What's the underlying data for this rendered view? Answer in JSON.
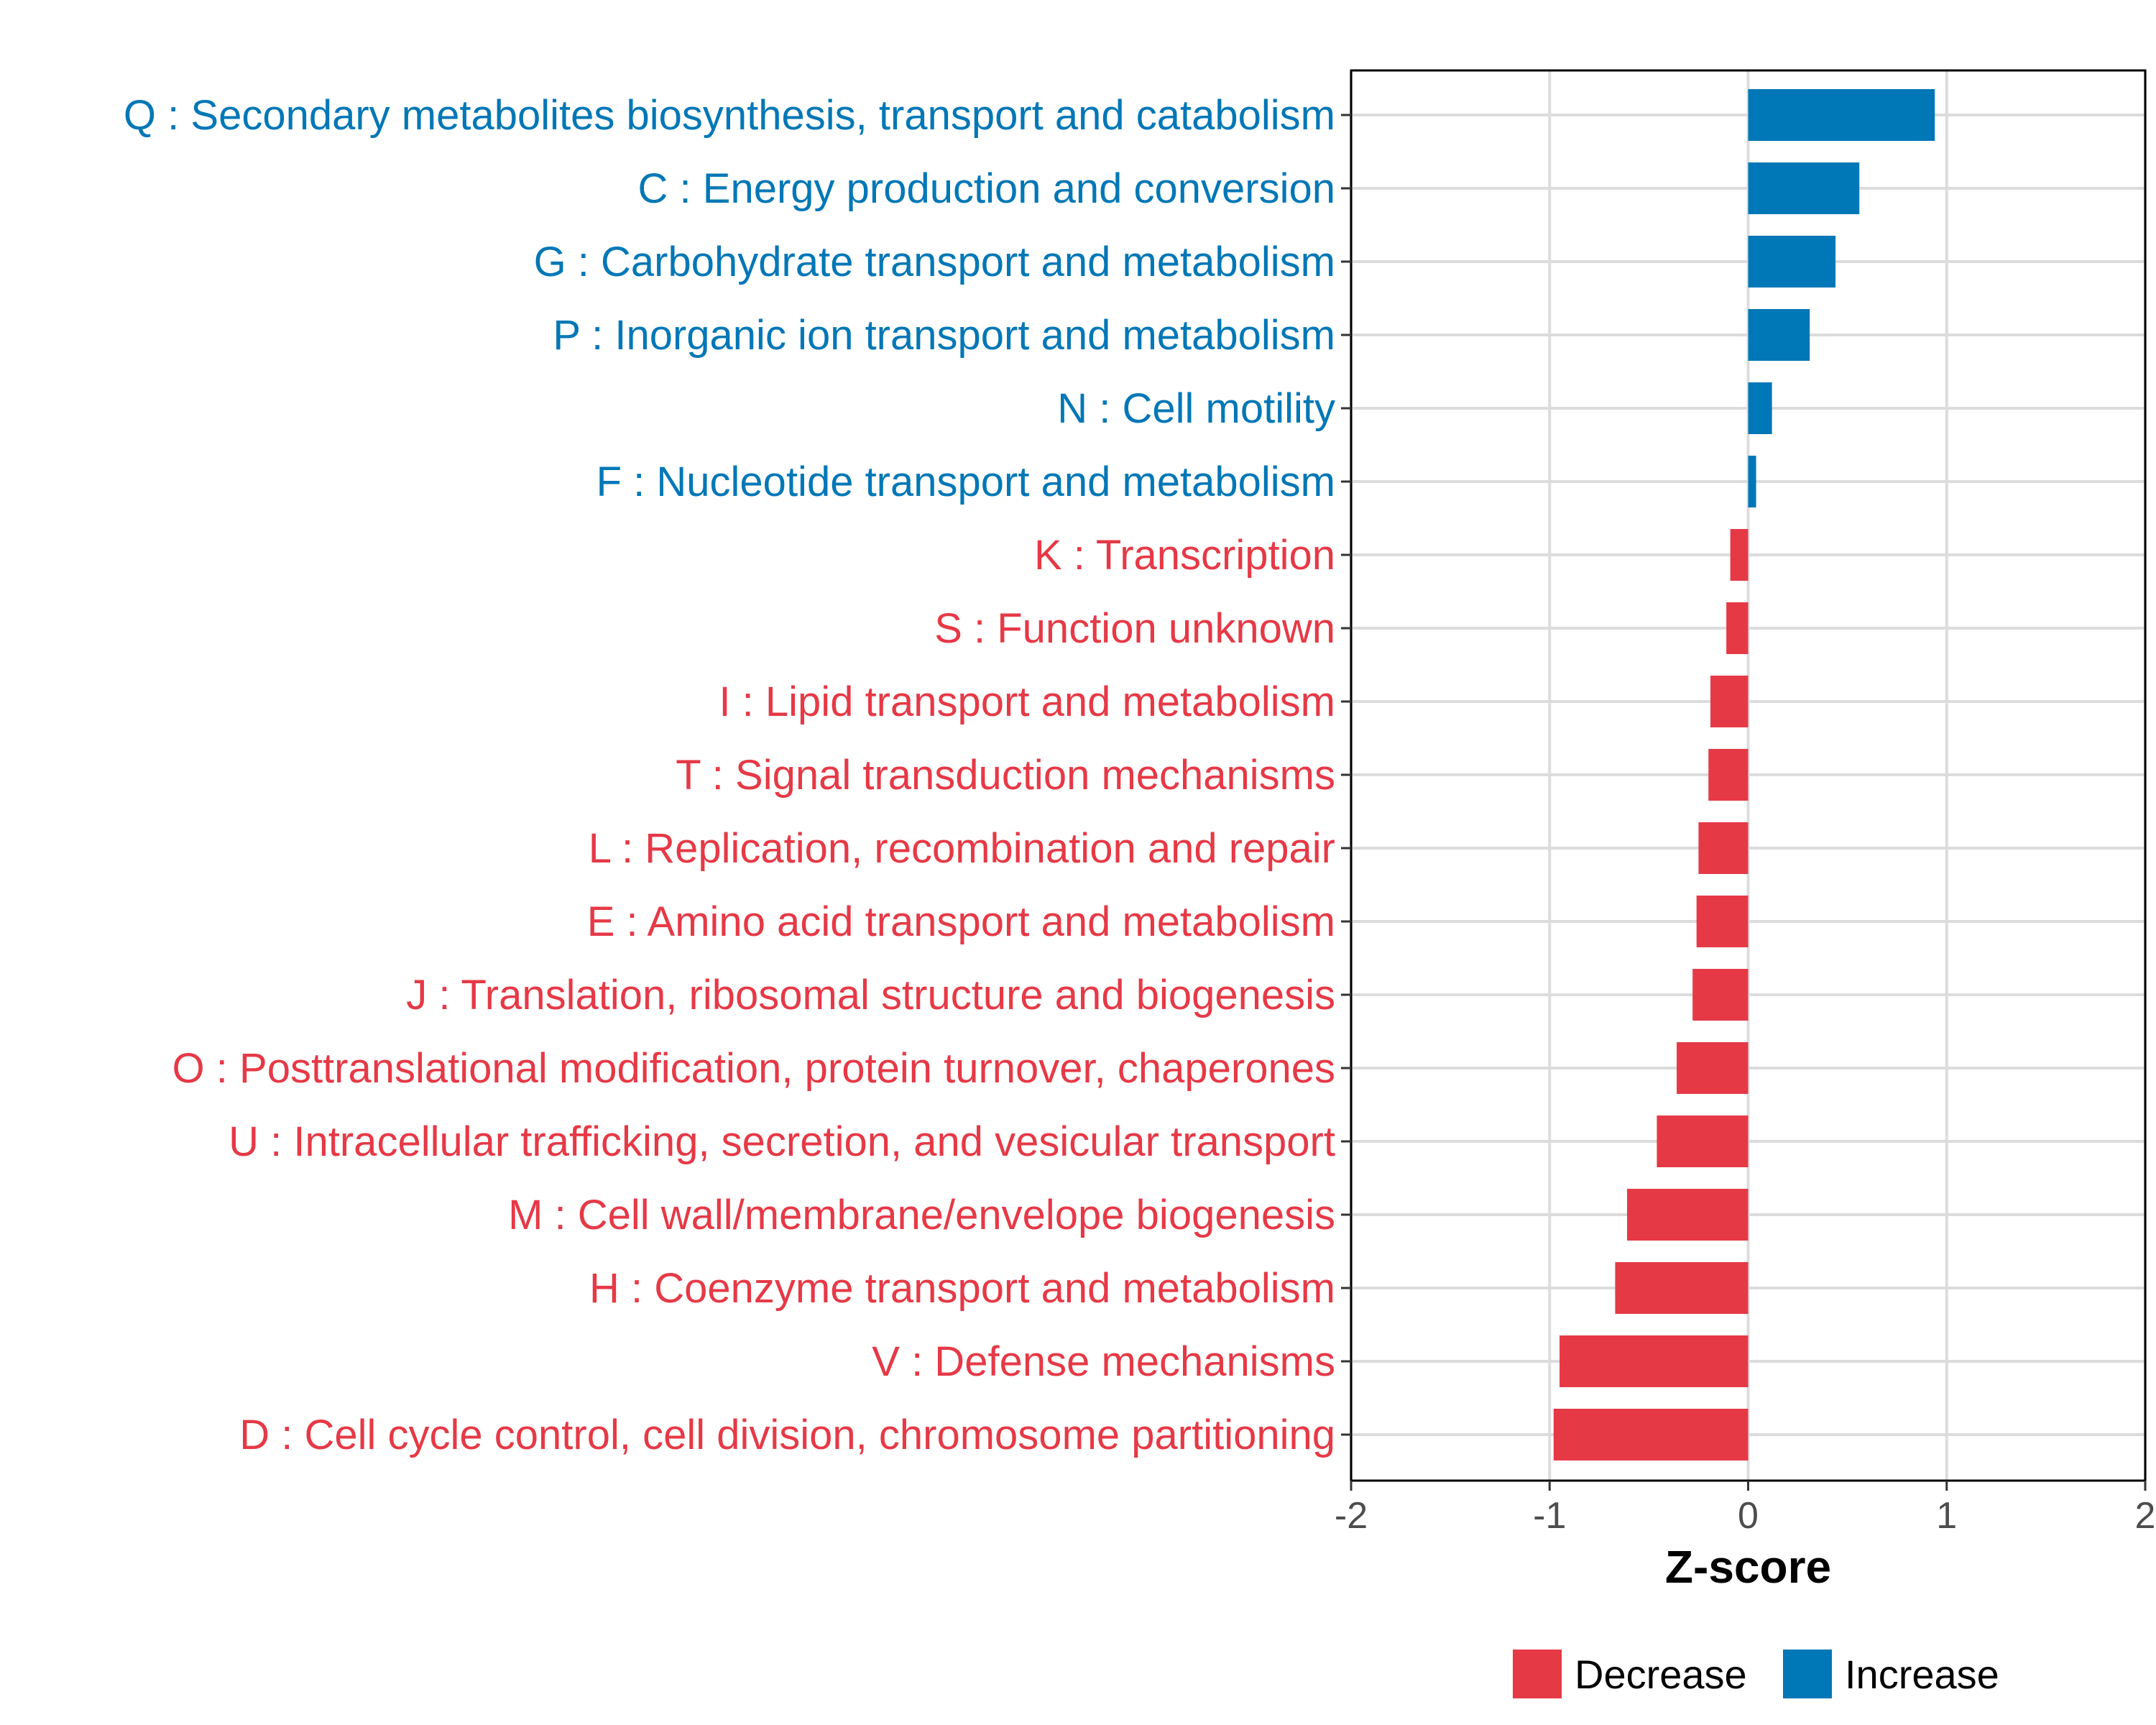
{
  "chart_data": {
    "type": "bar",
    "orientation": "horizontal",
    "title": "",
    "xlabel": "Z-score",
    "ylabel": "",
    "xlim": [
      -2.0,
      2.0
    ],
    "x_ticks": [
      -2,
      -1,
      0,
      1,
      2
    ],
    "x_tick_labels": [
      "-2",
      "-1",
      "0",
      "1",
      "2"
    ],
    "grid": true,
    "colors": {
      "Increase": "#0077b6",
      "Decrease": "#e63946"
    },
    "legend": {
      "placement": "bottom",
      "entries": [
        "Decrease",
        "Increase"
      ]
    },
    "bars": [
      {
        "label": "Q : Secondary metabolites biosynthesis, transport and catabolism",
        "value": 0.94,
        "group": "Increase"
      },
      {
        "label": "C : Energy production and conversion",
        "value": 0.56,
        "group": "Increase"
      },
      {
        "label": "G : Carbohydrate transport and metabolism",
        "value": 0.44,
        "group": "Increase"
      },
      {
        "label": "P : Inorganic ion transport and metabolism",
        "value": 0.31,
        "group": "Increase"
      },
      {
        "label": "N : Cell motility",
        "value": 0.12,
        "group": "Increase"
      },
      {
        "label": "F : Nucleotide transport and metabolism",
        "value": 0.04,
        "group": "Increase"
      },
      {
        "label": "K : Transcription",
        "value": -0.09,
        "group": "Decrease"
      },
      {
        "label": "S : Function unknown",
        "value": -0.11,
        "group": "Decrease"
      },
      {
        "label": "I : Lipid transport and metabolism",
        "value": -0.19,
        "group": "Decrease"
      },
      {
        "label": "T : Signal transduction mechanisms",
        "value": -0.2,
        "group": "Decrease"
      },
      {
        "label": "L : Replication, recombination and repair",
        "value": -0.25,
        "group": "Decrease"
      },
      {
        "label": "E : Amino acid transport and metabolism",
        "value": -0.26,
        "group": "Decrease"
      },
      {
        "label": "J : Translation, ribosomal structure and biogenesis",
        "value": -0.28,
        "group": "Decrease"
      },
      {
        "label": "O : Posttranslational modification, protein turnover, chaperones",
        "value": -0.36,
        "group": "Decrease"
      },
      {
        "label": "U : Intracellular trafficking, secretion, and vesicular transport",
        "value": -0.46,
        "group": "Decrease"
      },
      {
        "label": "M : Cell wall/membrane/envelope biogenesis",
        "value": -0.61,
        "group": "Decrease"
      },
      {
        "label": "H : Coenzyme transport and metabolism",
        "value": -0.67,
        "group": "Decrease"
      },
      {
        "label": "V : Defense mechanisms",
        "value": -0.95,
        "group": "Decrease"
      },
      {
        "label": "D : Cell cycle control, cell division, chromosome partitioning",
        "value": -0.98,
        "group": "Decrease"
      }
    ]
  }
}
